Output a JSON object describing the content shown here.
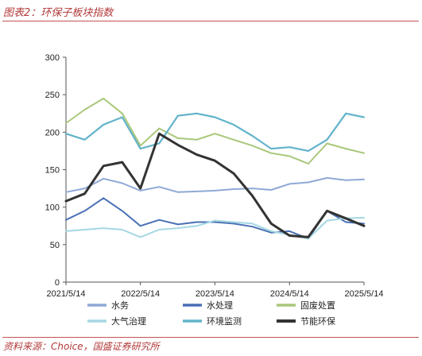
{
  "figure": {
    "title": "图表2：环保子板块指数",
    "source": "资料来源：Choice，国盛证券研究所"
  },
  "chart_data": {
    "type": "line",
    "title": "",
    "xlabel": "",
    "ylabel": "",
    "ylim": [
      0,
      300
    ],
    "yticks": [
      0,
      50,
      100,
      150,
      200,
      250,
      300
    ],
    "x_tick_labels": [
      "2021/5/14",
      "2022/5/14",
      "2023/5/14",
      "2024/5/14",
      "2025/5/14"
    ],
    "x_range": [
      "2021/5/14",
      "2025/5/14"
    ],
    "grid": false,
    "legend_position": "bottom",
    "x": [
      "2021/5/14",
      "2021/8/14",
      "2021/11/14",
      "2022/2/14",
      "2022/5/14",
      "2022/8/14",
      "2022/11/14",
      "2023/2/14",
      "2023/5/14",
      "2023/8/14",
      "2023/11/14",
      "2024/2/14",
      "2024/5/14",
      "2024/8/14",
      "2024/11/14",
      "2025/2/14",
      "2025/5/14"
    ],
    "series": [
      {
        "name": "水务",
        "color": "#8fa9d6",
        "width": 2,
        "values": [
          120,
          125,
          138,
          132,
          122,
          127,
          120,
          121,
          122,
          124,
          125,
          123,
          131,
          133,
          139,
          136,
          137
        ]
      },
      {
        "name": "水处理",
        "color": "#4a70b5",
        "width": 2,
        "values": [
          83,
          95,
          112,
          95,
          75,
          83,
          77,
          80,
          80,
          78,
          74,
          66,
          68,
          58,
          95,
          80,
          78
        ]
      },
      {
        "name": "固废处置",
        "color": "#a9c77a",
        "width": 2,
        "values": [
          212,
          230,
          245,
          225,
          182,
          205,
          192,
          190,
          198,
          190,
          182,
          172,
          168,
          158,
          185,
          178,
          172
        ]
      },
      {
        "name": "大气治理",
        "color": "#a5d7e3",
        "width": 2,
        "values": [
          68,
          70,
          72,
          70,
          60,
          70,
          72,
          75,
          82,
          80,
          78,
          68,
          63,
          58,
          82,
          85,
          86
        ]
      },
      {
        "name": "环境监测",
        "color": "#62b3cb",
        "width": 2.2,
        "values": [
          198,
          190,
          210,
          220,
          178,
          185,
          222,
          225,
          220,
          210,
          195,
          178,
          180,
          175,
          190,
          225,
          220
        ]
      },
      {
        "name": "节能环保",
        "color": "#333333",
        "width": 3,
        "values": [
          108,
          118,
          155,
          160,
          125,
          198,
          183,
          170,
          162,
          145,
          115,
          78,
          62,
          60,
          95,
          85,
          75
        ]
      }
    ]
  }
}
